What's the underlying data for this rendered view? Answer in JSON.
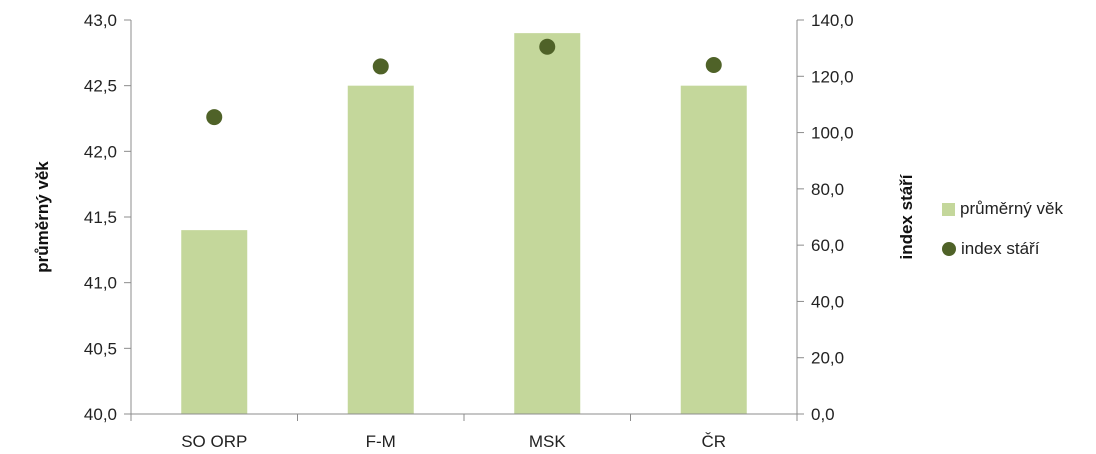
{
  "chart_data": {
    "type": "bar",
    "categories": [
      "SO ORP",
      "F-M",
      "MSK",
      "ČR"
    ],
    "series": [
      {
        "name": "průměrný věk",
        "type": "bar",
        "axis": "left",
        "color": "#c4d79b",
        "values": [
          41.4,
          42.5,
          42.9,
          42.5
        ]
      },
      {
        "name": "index stáří",
        "type": "scatter",
        "axis": "right",
        "color": "#4f6228",
        "values": [
          105.5,
          123.5,
          130.5,
          124.0
        ]
      }
    ],
    "ylabel": "průměrný věk",
    "y2label": "index stáří",
    "ylim": [
      40.0,
      43.0
    ],
    "y2lim": [
      0.0,
      140.0
    ],
    "yticks": [
      "40,0",
      "40,5",
      "41,0",
      "41,5",
      "42,0",
      "42,5",
      "43,0"
    ],
    "y2ticks": [
      "0,0",
      "20,0",
      "40,0",
      "60,0",
      "80,0",
      "100,0",
      "120,0",
      "140,0"
    ],
    "grid": false,
    "legend_position": "right"
  }
}
